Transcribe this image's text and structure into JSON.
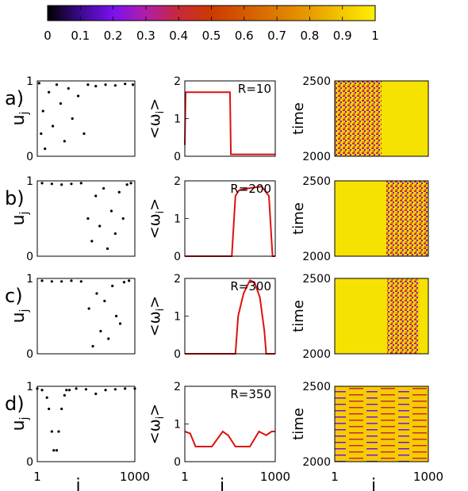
{
  "colorbar": {
    "ticks": [
      "0",
      "0.1",
      "0.2",
      "0.3",
      "0.4",
      "0.5",
      "0.6",
      "0.7",
      "0.8",
      "0.9",
      "1"
    ],
    "range": [
      0,
      1
    ],
    "palette": [
      "#000000",
      "#3b0a8c",
      "#7b10f0",
      "#b01ea8",
      "#c8283a",
      "#cc3a00",
      "#d45a00",
      "#dd7a00",
      "#e79c00",
      "#f2c800",
      "#ffef00"
    ]
  },
  "chart_data": [
    {
      "row": "a)",
      "panels": [
        {
          "type": "scatter",
          "ylabel": "u",
          "ylabel_sub": "j",
          "ylim": [
            0,
            1
          ],
          "yticks": [
            "0",
            "1"
          ],
          "xlim": [
            1,
            1000
          ],
          "description_of_data": "Most points near 1; scattered points for i in about 1-500 drop toward 0",
          "x": [
            20,
            40,
            60,
            80,
            120,
            160,
            200,
            240,
            280,
            320,
            360,
            420,
            480,
            520,
            600,
            700,
            800,
            900,
            980
          ],
          "y": [
            0.97,
            0.3,
            0.6,
            0.1,
            0.85,
            0.4,
            0.95,
            0.7,
            0.2,
            0.9,
            0.5,
            0.8,
            0.3,
            0.95,
            0.93,
            0.95,
            0.94,
            0.96,
            0.95
          ]
        },
        {
          "type": "line",
          "ylabel": "<ω",
          "ylabel_sub": "i",
          "ylabel_close": ">",
          "ylim": [
            0,
            2
          ],
          "yticks": [
            "0",
            "1",
            "2"
          ],
          "xlim": [
            1,
            1000
          ],
          "annotation": "R=10",
          "x": [
            1,
            10,
            20,
            500,
            510,
            1000
          ],
          "y": [
            0.3,
            1.7,
            1.7,
            1.7,
            0.05,
            0.05
          ]
        },
        {
          "type": "heatmap",
          "ylabel": "time",
          "ylim": [
            2000,
            2500
          ],
          "yticks": [
            "2000",
            "2500"
          ],
          "pattern": "disordered in i 1-500, uniform 1 for i 500-1000"
        }
      ]
    },
    {
      "row": "b)",
      "panels": [
        {
          "type": "scatter",
          "ylabel": "u",
          "ylabel_sub": "j",
          "ylim": [
            0,
            1
          ],
          "yticks": [
            "0",
            "1"
          ],
          "xlim": [
            1,
            1000
          ],
          "x": [
            50,
            150,
            250,
            350,
            450,
            520,
            560,
            600,
            640,
            680,
            720,
            760,
            800,
            840,
            880,
            920,
            960
          ],
          "y": [
            0.97,
            0.96,
            0.95,
            0.96,
            0.97,
            0.5,
            0.2,
            0.8,
            0.4,
            0.9,
            0.1,
            0.6,
            0.3,
            0.85,
            0.5,
            0.95,
            0.97
          ]
        },
        {
          "type": "line",
          "ylabel": "<ω",
          "ylabel_sub": "i",
          "ylabel_close": ">",
          "ylim": [
            0,
            2
          ],
          "yticks": [
            "0",
            "1",
            "2"
          ],
          "xlim": [
            1,
            1000
          ],
          "annotation": "R=200",
          "x": [
            1,
            520,
            560,
            600,
            700,
            850,
            930,
            970,
            1000
          ],
          "y": [
            0.0,
            0.0,
            1.6,
            1.75,
            1.8,
            1.85,
            1.6,
            0.0,
            0.0
          ]
        },
        {
          "type": "heatmap",
          "ylabel": "time",
          "ylim": [
            2000,
            2500
          ],
          "yticks": [
            "2000",
            "2500"
          ],
          "pattern": "uniform 1 for i 1-550, disordered for i 550-1000"
        }
      ]
    },
    {
      "row": "c)",
      "panels": [
        {
          "type": "scatter",
          "ylabel": "u",
          "ylabel_sub": "j",
          "ylim": [
            0,
            1
          ],
          "yticks": [
            "0",
            "1"
          ],
          "xlim": [
            1,
            1000
          ],
          "x": [
            50,
            150,
            250,
            350,
            450,
            530,
            570,
            610,
            650,
            690,
            730,
            770,
            810,
            850,
            890,
            940
          ],
          "y": [
            0.97,
            0.96,
            0.96,
            0.97,
            0.96,
            0.6,
            0.1,
            0.8,
            0.3,
            0.7,
            0.2,
            0.9,
            0.5,
            0.4,
            0.95,
            0.97
          ]
        },
        {
          "type": "line",
          "ylabel": "<ω",
          "ylabel_sub": "i",
          "ylabel_close": ">",
          "ylim": [
            0,
            2
          ],
          "yticks": [
            "0",
            "1",
            "2"
          ],
          "xlim": [
            1,
            1000
          ],
          "annotation": "R=300",
          "x": [
            1,
            560,
            590,
            650,
            720,
            770,
            830,
            880,
            900,
            1000
          ],
          "y": [
            0.0,
            0.0,
            1.0,
            1.6,
            1.95,
            1.9,
            1.5,
            0.6,
            0.0,
            0.0
          ]
        },
        {
          "type": "heatmap",
          "ylabel": "time",
          "ylim": [
            2000,
            2500
          ],
          "yticks": [
            "2000",
            "2500"
          ],
          "pattern": "uniform 1 for i 1-560, disordered for i 560-900, uniform 1 beyond"
        }
      ]
    },
    {
      "row": "d)",
      "panels": [
        {
          "type": "scatter",
          "ylabel": "u",
          "ylabel_sub": "j",
          "ylim": [
            0,
            1
          ],
          "yticks": [
            "0",
            "1"
          ],
          "xlim": [
            1,
            1000
          ],
          "xticks": [
            "1",
            "1000"
          ],
          "xlabel": "i",
          "x": [
            1,
            50,
            100,
            120,
            150,
            170,
            200,
            220,
            250,
            280,
            300,
            330,
            400,
            500,
            600,
            700,
            800,
            900,
            1000
          ],
          "y": [
            0.97,
            0.95,
            0.85,
            0.7,
            0.4,
            0.15,
            0.15,
            0.4,
            0.7,
            0.88,
            0.95,
            0.95,
            0.97,
            0.96,
            0.9,
            0.95,
            0.96,
            0.97,
            0.97
          ]
        },
        {
          "type": "line",
          "ylabel": "<ω",
          "ylabel_sub": "i",
          "ylabel_close": ">",
          "ylim": [
            0,
            2
          ],
          "yticks": [
            "0",
            "1",
            "2"
          ],
          "xlim": [
            1,
            1000
          ],
          "xticks": [
            "1",
            "1000"
          ],
          "xlabel": "i",
          "annotation": "R=350",
          "x": [
            1,
            60,
            120,
            180,
            300,
            420,
            480,
            560,
            620,
            720,
            820,
            900,
            960,
            1000
          ],
          "y": [
            0.8,
            0.75,
            0.4,
            0.4,
            0.4,
            0.8,
            0.7,
            0.4,
            0.4,
            0.4,
            0.8,
            0.7,
            0.8,
            0.8
          ]
        },
        {
          "type": "heatmap",
          "ylabel": "time",
          "ylim": [
            2000,
            2500
          ],
          "yticks": [
            "2000",
            "2500"
          ],
          "xticks": [
            "1",
            "1000"
          ],
          "xlabel": "i",
          "pattern": "horizontal streaks across full width"
        }
      ]
    }
  ]
}
